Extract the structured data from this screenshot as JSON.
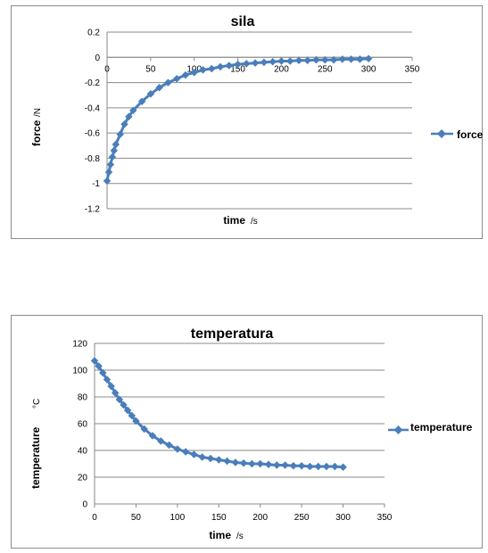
{
  "chart_data": [
    {
      "type": "line",
      "title": "sila",
      "xlabel": "time",
      "xunit": "/s",
      "ylabel": "force",
      "yunit": "/N",
      "xlim": [
        0,
        350
      ],
      "ylim": [
        -1.2,
        0.2
      ],
      "xticks": [
        "0",
        "50",
        "100",
        "150",
        "200",
        "250",
        "300",
        "350"
      ],
      "yticks": [
        "0.2",
        "0",
        "-0.2",
        "-0.4",
        "-0.6",
        "-0.8",
        "-1",
        "-1.2"
      ],
      "grid": true,
      "legend_position": "right",
      "series_color": "#4a7ebb",
      "series": [
        {
          "name": "force",
          "x": [
            0,
            2,
            4,
            6,
            8,
            10,
            15,
            20,
            25,
            30,
            40,
            50,
            60,
            70,
            80,
            90,
            100,
            110,
            120,
            130,
            140,
            150,
            160,
            170,
            180,
            190,
            200,
            210,
            220,
            230,
            240,
            250,
            260,
            270,
            280,
            290,
            300
          ],
          "y": [
            -0.98,
            -0.91,
            -0.85,
            -0.79,
            -0.74,
            -0.69,
            -0.61,
            -0.53,
            -0.47,
            -0.42,
            -0.35,
            -0.29,
            -0.24,
            -0.2,
            -0.17,
            -0.14,
            -0.12,
            -0.1,
            -0.09,
            -0.075,
            -0.065,
            -0.055,
            -0.05,
            -0.045,
            -0.04,
            -0.035,
            -0.03,
            -0.03,
            -0.025,
            -0.025,
            -0.02,
            -0.02,
            -0.02,
            -0.015,
            -0.015,
            -0.015,
            -0.01
          ]
        }
      ]
    },
    {
      "type": "line",
      "title": "temperatura",
      "xlabel": "time",
      "xunit": "/s",
      "ylabel": "temperature",
      "yunit": "°C",
      "xlim": [
        0,
        350
      ],
      "ylim": [
        0,
        120
      ],
      "xticks": [
        "0",
        "50",
        "100",
        "150",
        "200",
        "250",
        "300",
        "350"
      ],
      "yticks": [
        "120",
        "100",
        "80",
        "60",
        "40",
        "20",
        "0"
      ],
      "grid": true,
      "legend_position": "right",
      "series_color": "#4a7ebb",
      "series": [
        {
          "name": "temperature",
          "x": [
            0,
            5,
            10,
            15,
            20,
            25,
            30,
            35,
            40,
            45,
            50,
            60,
            70,
            80,
            90,
            100,
            110,
            120,
            130,
            140,
            150,
            160,
            170,
            180,
            190,
            200,
            210,
            220,
            230,
            240,
            250,
            260,
            270,
            280,
            290,
            300
          ],
          "y": [
            107,
            103,
            98,
            93,
            88,
            83,
            78,
            74,
            70,
            66,
            62,
            56,
            51,
            47,
            44,
            41,
            39,
            37,
            35,
            34,
            33,
            32,
            31,
            30.5,
            30,
            30,
            29.5,
            29,
            29,
            28.5,
            28.5,
            28,
            28,
            28,
            28,
            27.5
          ]
        }
      ]
    }
  ]
}
